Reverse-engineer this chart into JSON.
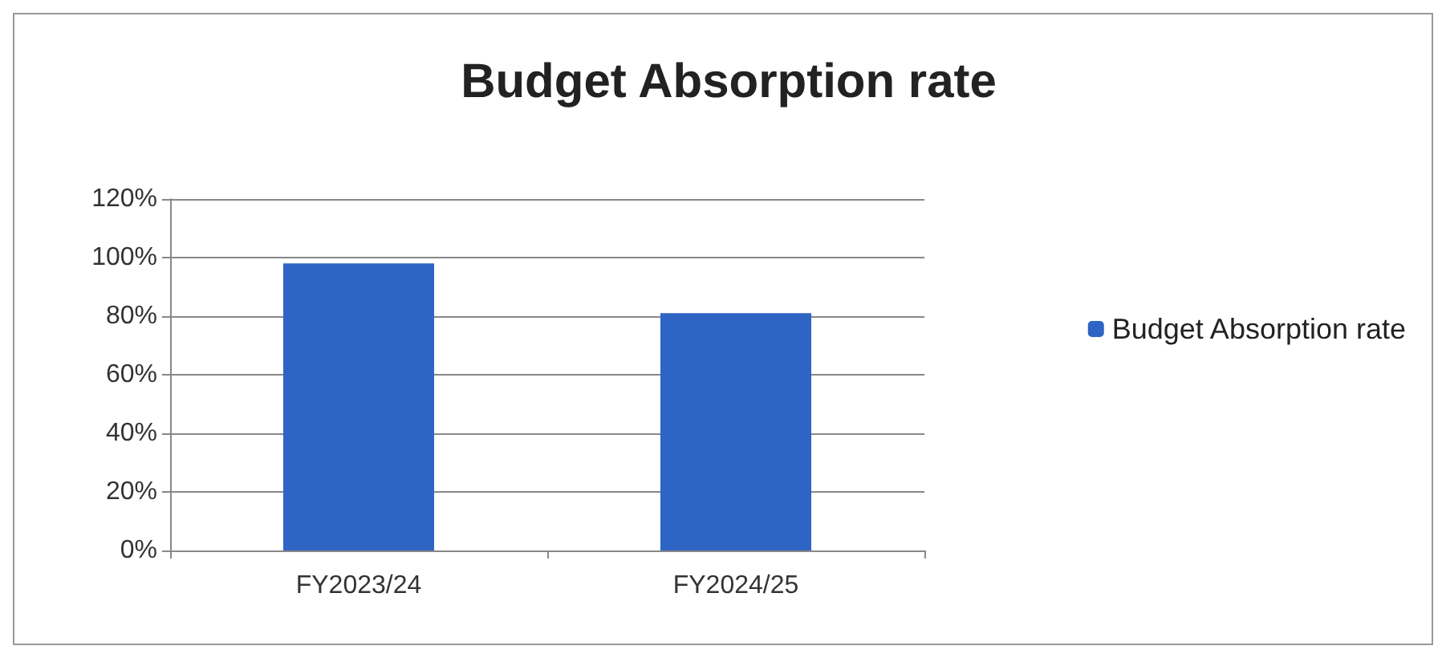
{
  "chart_data": {
    "type": "bar",
    "title": "Budget Absorption rate",
    "categories": [
      "FY2023/24",
      "FY2024/25"
    ],
    "series": [
      {
        "name": "Budget Absorption rate",
        "color": "#2e64c4",
        "values": [
          98,
          81
        ]
      }
    ],
    "ylim": [
      0,
      120
    ],
    "yticks": [
      {
        "value": 0,
        "label": "0%"
      },
      {
        "value": 20,
        "label": "20%"
      },
      {
        "value": 40,
        "label": "40%"
      },
      {
        "value": 60,
        "label": "60%"
      },
      {
        "value": 80,
        "label": "80%"
      },
      {
        "value": 100,
        "label": "100%"
      },
      {
        "value": 120,
        "label": "120%"
      }
    ],
    "grid": "y",
    "legend": "right"
  }
}
